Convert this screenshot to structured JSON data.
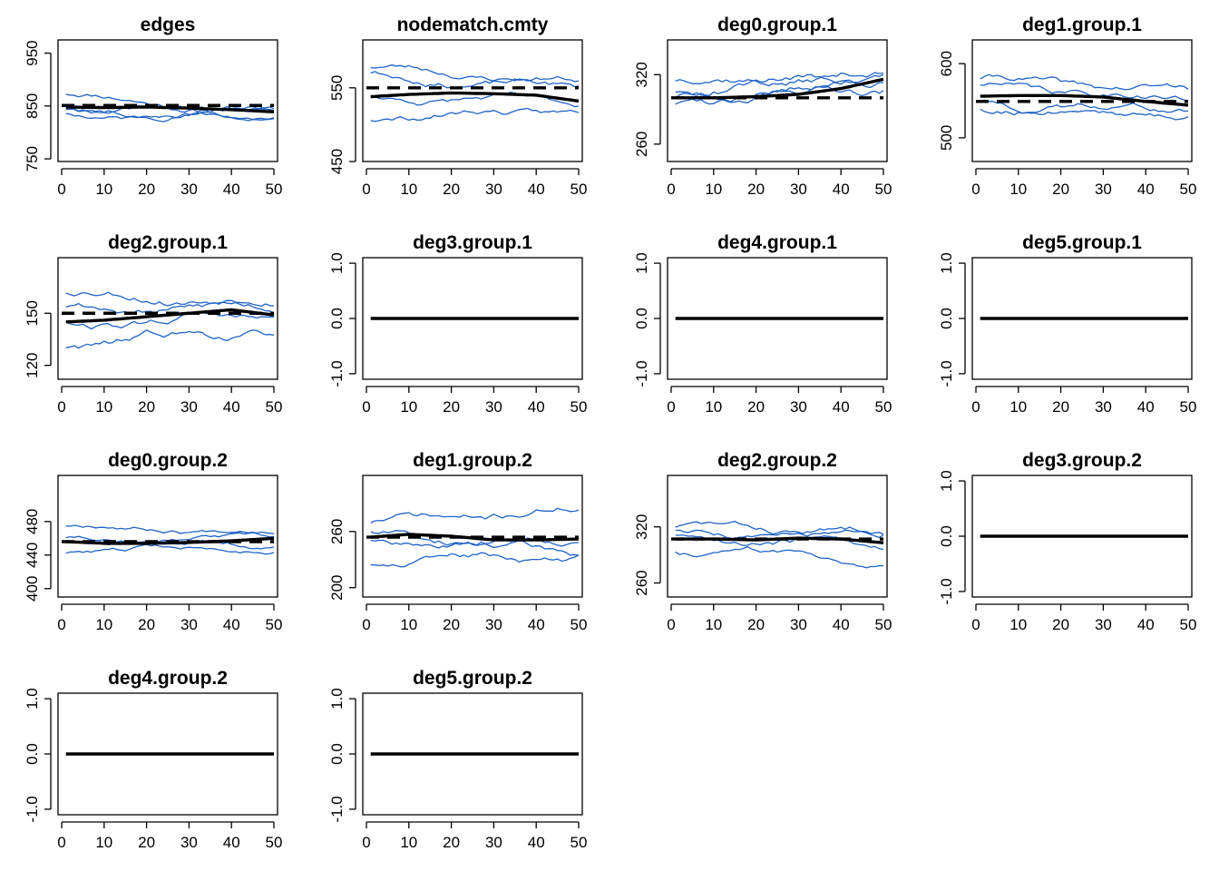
{
  "figure": {
    "rows": 4,
    "cols": 4
  },
  "colors": {
    "simulations": "#1f63c6",
    "mean": "#000000",
    "observed": "#000000",
    "axes": "#000000"
  },
  "legend": "none",
  "chart_data": [
    {
      "type": "line",
      "title": "edges",
      "xlim": [
        0,
        50
      ],
      "ylim": [
        745,
        975
      ],
      "xticks": [
        0,
        10,
        20,
        30,
        40,
        50
      ],
      "yticks": [
        750,
        850,
        950
      ],
      "observed": 851,
      "seed": 11,
      "sim_start": [
        873,
        840,
        832,
        846
      ],
      "sim_end": [
        836,
        842,
        829,
        838
      ],
      "sim_amp": 14,
      "mean": [
        [
          1,
          848
        ],
        [
          10,
          847
        ],
        [
          20,
          848
        ],
        [
          30,
          846
        ],
        [
          40,
          843
        ],
        [
          50,
          839
        ]
      ]
    },
    {
      "type": "line",
      "title": "nodematch.cmty",
      "xlim": [
        0,
        50
      ],
      "ylim": [
        450,
        615
      ],
      "xticks": [
        0,
        10,
        20,
        30,
        40,
        50
      ],
      "yticks": [
        450,
        550
      ],
      "observed": 550,
      "seed": 23,
      "sim_start": [
        578,
        566,
        538,
        510
      ],
      "sim_end": [
        558,
        550,
        530,
        519
      ],
      "sim_amp": 11,
      "mean": [
        [
          1,
          538
        ],
        [
          10,
          541
        ],
        [
          20,
          543
        ],
        [
          30,
          542
        ],
        [
          40,
          540
        ],
        [
          50,
          532
        ]
      ]
    },
    {
      "type": "line",
      "title": "deg0.group.1",
      "xlim": [
        0,
        50
      ],
      "ylim": [
        245,
        350
      ],
      "xticks": [
        0,
        10,
        20,
        30,
        40,
        50
      ],
      "yticks": [
        260,
        320
      ],
      "observed": 300,
      "seed": 37,
      "sim_start": [
        315,
        298,
        293,
        305
      ],
      "sim_end": [
        319,
        314,
        310,
        322
      ],
      "sim_amp": 9,
      "mean": [
        [
          1,
          300
        ],
        [
          10,
          300
        ],
        [
          20,
          301
        ],
        [
          30,
          303
        ],
        [
          40,
          308
        ],
        [
          50,
          316
        ]
      ]
    },
    {
      "type": "line",
      "title": "deg1.group.1",
      "xlim": [
        0,
        50
      ],
      "ylim": [
        468,
        632
      ],
      "xticks": [
        0,
        10,
        20,
        30,
        40,
        50
      ],
      "yticks": [
        500,
        600
      ],
      "observed": 549,
      "seed": 41,
      "sim_start": [
        580,
        570,
        544,
        538
      ],
      "sim_end": [
        562,
        552,
        540,
        533
      ],
      "sim_amp": 12,
      "mean": [
        [
          1,
          556
        ],
        [
          10,
          557
        ],
        [
          20,
          557
        ],
        [
          30,
          555
        ],
        [
          40,
          549
        ],
        [
          50,
          544
        ]
      ]
    },
    {
      "type": "line",
      "title": "deg2.group.1",
      "xlim": [
        0,
        50
      ],
      "ylim": [
        112,
        182
      ],
      "xticks": [
        0,
        10,
        20,
        30,
        40,
        50
      ],
      "yticks": [
        120,
        150
      ],
      "observed": 150,
      "seed": 53,
      "sim_start": [
        162,
        152,
        144,
        132
      ],
      "sim_end": [
        158,
        153,
        148,
        140
      ],
      "sim_amp": 6,
      "mean": [
        [
          1,
          145
        ],
        [
          10,
          146
        ],
        [
          20,
          148
        ],
        [
          30,
          150
        ],
        [
          40,
          152
        ],
        [
          50,
          149
        ]
      ]
    },
    {
      "type": "line",
      "title": "deg3.group.1",
      "xlim": [
        0,
        50
      ],
      "ylim": [
        -1.1,
        1.1
      ],
      "xticks": [
        0,
        10,
        20,
        30,
        40,
        50
      ],
      "yticks": [
        -1.0,
        0.0,
        1.0
      ],
      "observed": 0,
      "constant": true,
      "mean": [
        [
          1,
          0
        ],
        [
          50,
          0
        ]
      ]
    },
    {
      "type": "line",
      "title": "deg4.group.1",
      "xlim": [
        0,
        50
      ],
      "ylim": [
        -1.1,
        1.1
      ],
      "xticks": [
        0,
        10,
        20,
        30,
        40,
        50
      ],
      "yticks": [
        -1.0,
        0.0,
        1.0
      ],
      "observed": 0,
      "constant": true,
      "mean": [
        [
          1,
          0
        ],
        [
          50,
          0
        ]
      ]
    },
    {
      "type": "line",
      "title": "deg5.group.1",
      "xlim": [
        0,
        50
      ],
      "ylim": [
        -1.1,
        1.1
      ],
      "xticks": [
        0,
        10,
        20,
        30,
        40,
        50
      ],
      "yticks": [
        -1.0,
        0.0,
        1.0
      ],
      "observed": 0,
      "constant": true,
      "mean": [
        [
          1,
          0
        ],
        [
          50,
          0
        ]
      ]
    },
    {
      "type": "line",
      "title": "deg0.group.2",
      "xlim": [
        0,
        50
      ],
      "ylim": [
        390,
        535
      ],
      "xticks": [
        0,
        10,
        20,
        30,
        40,
        50
      ],
      "yticks": [
        400,
        440,
        480
      ],
      "observed": 456,
      "seed": 67,
      "sim_start": [
        475,
        460,
        455,
        445
      ],
      "sim_end": [
        469,
        459,
        452,
        447
      ],
      "sim_amp": 7,
      "mean": [
        [
          1,
          456
        ],
        [
          10,
          454
        ],
        [
          20,
          454
        ],
        [
          30,
          455
        ],
        [
          40,
          457
        ],
        [
          50,
          460
        ]
      ]
    },
    {
      "type": "line",
      "title": "deg1.group.2",
      "xlim": [
        0,
        50
      ],
      "ylim": [
        190,
        320
      ],
      "xticks": [
        0,
        10,
        20,
        30,
        40,
        50
      ],
      "yticks": [
        200,
        260
      ],
      "observed": 254,
      "seed": 71,
      "sim_start": [
        270,
        255,
        250,
        228
      ],
      "sim_end": [
        283,
        250,
        238,
        232
      ],
      "sim_amp": 10,
      "mean": [
        [
          1,
          254
        ],
        [
          10,
          257
        ],
        [
          20,
          255
        ],
        [
          30,
          251
        ],
        [
          40,
          251
        ],
        [
          50,
          252
        ]
      ]
    },
    {
      "type": "line",
      "title": "deg2.group.2",
      "xlim": [
        0,
        50
      ],
      "ylim": [
        245,
        375
      ],
      "xticks": [
        0,
        10,
        20,
        30,
        40,
        50
      ],
      "yticks": [
        260,
        320
      ],
      "observed": 307,
      "seed": 83,
      "sim_start": [
        320,
        315,
        308,
        295
      ],
      "sim_end": [
        315,
        308,
        300,
        284
      ],
      "sim_amp": 9,
      "mean": [
        [
          1,
          307
        ],
        [
          10,
          307
        ],
        [
          20,
          306
        ],
        [
          30,
          308
        ],
        [
          40,
          307
        ],
        [
          50,
          303
        ]
      ]
    },
    {
      "type": "line",
      "title": "deg3.group.2",
      "xlim": [
        0,
        50
      ],
      "ylim": [
        -1.1,
        1.1
      ],
      "xticks": [
        0,
        10,
        20,
        30,
        40,
        50
      ],
      "yticks": [
        -1.0,
        0.0,
        1.0
      ],
      "observed": 0,
      "constant": true,
      "mean": [
        [
          1,
          0
        ],
        [
          50,
          0
        ]
      ]
    },
    {
      "type": "line",
      "title": "deg4.group.2",
      "xlim": [
        0,
        50
      ],
      "ylim": [
        -1.1,
        1.1
      ],
      "xticks": [
        0,
        10,
        20,
        30,
        40,
        50
      ],
      "yticks": [
        -1.0,
        0.0,
        1.0
      ],
      "observed": 0,
      "constant": true,
      "mean": [
        [
          1,
          0
        ],
        [
          50,
          0
        ]
      ]
    },
    {
      "type": "line",
      "title": "deg5.group.2",
      "xlim": [
        0,
        50
      ],
      "ylim": [
        -1.1,
        1.1
      ],
      "xticks": [
        0,
        10,
        20,
        30,
        40,
        50
      ],
      "yticks": [
        -1.0,
        0.0,
        1.0
      ],
      "observed": 0,
      "constant": true,
      "mean": [
        [
          1,
          0
        ],
        [
          50,
          0
        ]
      ]
    }
  ]
}
